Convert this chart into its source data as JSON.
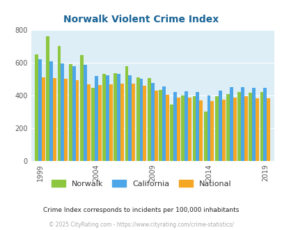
{
  "title": "Norwalk Violent Crime Index",
  "title_color": "#1a6496",
  "background_color": "#ddeef6",
  "fig_background": "#ffffff",
  "ylim": [
    0,
    800
  ],
  "yticks": [
    0,
    200,
    400,
    600,
    800
  ],
  "years": [
    1999,
    2000,
    2001,
    2002,
    2003,
    2004,
    2005,
    2006,
    2007,
    2008,
    2009,
    2010,
    2011,
    2012,
    2013,
    2014,
    2015,
    2016,
    2017,
    2018,
    2019
  ],
  "norwalk": [
    650,
    760,
    700,
    590,
    645,
    445,
    530,
    535,
    580,
    510,
    505,
    435,
    345,
    400,
    395,
    300,
    395,
    410,
    420,
    415,
    420
  ],
  "california": [
    620,
    610,
    595,
    580,
    585,
    520,
    525,
    530,
    525,
    500,
    475,
    455,
    420,
    425,
    420,
    400,
    430,
    450,
    450,
    445,
    445
  ],
  "national": [
    510,
    508,
    500,
    493,
    468,
    465,
    469,
    473,
    471,
    458,
    430,
    404,
    386,
    387,
    368,
    365,
    373,
    386,
    395,
    381,
    381
  ],
  "norwalk_color": "#8dc63f",
  "california_color": "#4da6e8",
  "national_color": "#f5a623",
  "xtick_positions": [
    1999,
    2004,
    2009,
    2014,
    2019
  ],
  "legend_labels": [
    "Norwalk",
    "California",
    "National"
  ],
  "subtitle": "Crime Index corresponds to incidents per 100,000 inhabitants",
  "subtitle_color": "#222222",
  "footer": "© 2025 CityRating.com - https://www.cityrating.com/crime-statistics/",
  "footer_color": "#aaaaaa"
}
